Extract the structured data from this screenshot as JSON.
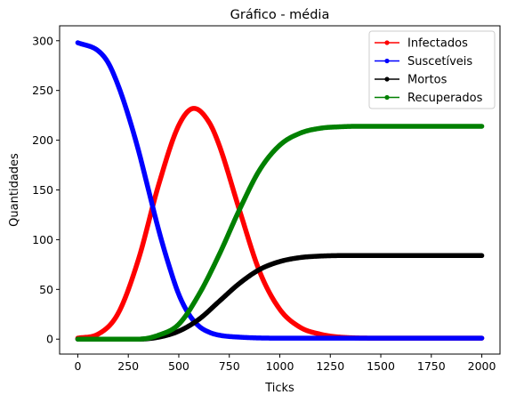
{
  "chart_data": {
    "type": "line",
    "title": "Gráfico - média",
    "xlabel": "Ticks",
    "ylabel": "Quantidades",
    "xlim": [
      -90,
      2090
    ],
    "ylim": [
      -15,
      315
    ],
    "xticks": [
      0,
      250,
      500,
      750,
      1000,
      1250,
      1500,
      1750,
      2000
    ],
    "yticks": [
      0,
      50,
      100,
      150,
      200,
      250,
      300
    ],
    "xtick_labels": [
      "0",
      "250",
      "500",
      "750",
      "1000",
      "1250",
      "1500",
      "1750",
      "2000"
    ],
    "ytick_labels": [
      "0",
      "50",
      "100",
      "150",
      "200",
      "250",
      "300"
    ],
    "grid": false,
    "legend_position": "top-right",
    "series": [
      {
        "name": "Infectados",
        "color": "#ff0000",
        "x": [
          0,
          100,
          200,
          300,
          400,
          500,
          575,
          650,
          700,
          800,
          900,
          1000,
          1100,
          1200,
          1300,
          1500,
          2000
        ],
        "y": [
          1,
          5,
          26,
          80,
          155,
          215,
          232,
          218,
          195,
          130,
          68,
          30,
          12,
          5,
          2,
          1,
          1
        ]
      },
      {
        "name": "Suscetíveis",
        "color": "#0000ff",
        "x": [
          0,
          100,
          150,
          200,
          250,
          300,
          350,
          400,
          450,
          500,
          550,
          600,
          650,
          700,
          800,
          1000,
          2000
        ],
        "y": [
          298,
          290,
          278,
          255,
          225,
          190,
          150,
          110,
          75,
          45,
          25,
          13,
          7,
          4,
          2,
          1,
          1
        ]
      },
      {
        "name": "Mortos",
        "color": "#000000",
        "x": [
          0,
          300,
          400,
          500,
          600,
          700,
          800,
          900,
          1000,
          1100,
          1200,
          1300,
          2000
        ],
        "y": [
          0,
          0,
          2,
          8,
          20,
          38,
          56,
          70,
          78,
          82,
          83.5,
          84,
          84
        ]
      },
      {
        "name": "Recuperados",
        "color": "#008000",
        "x": [
          0,
          300,
          400,
          500,
          600,
          700,
          800,
          900,
          1000,
          1100,
          1200,
          1300,
          1400,
          2000
        ],
        "y": [
          0,
          0,
          4,
          15,
          45,
          85,
          130,
          170,
          195,
          207,
          212,
          213.5,
          214,
          214
        ]
      }
    ]
  }
}
